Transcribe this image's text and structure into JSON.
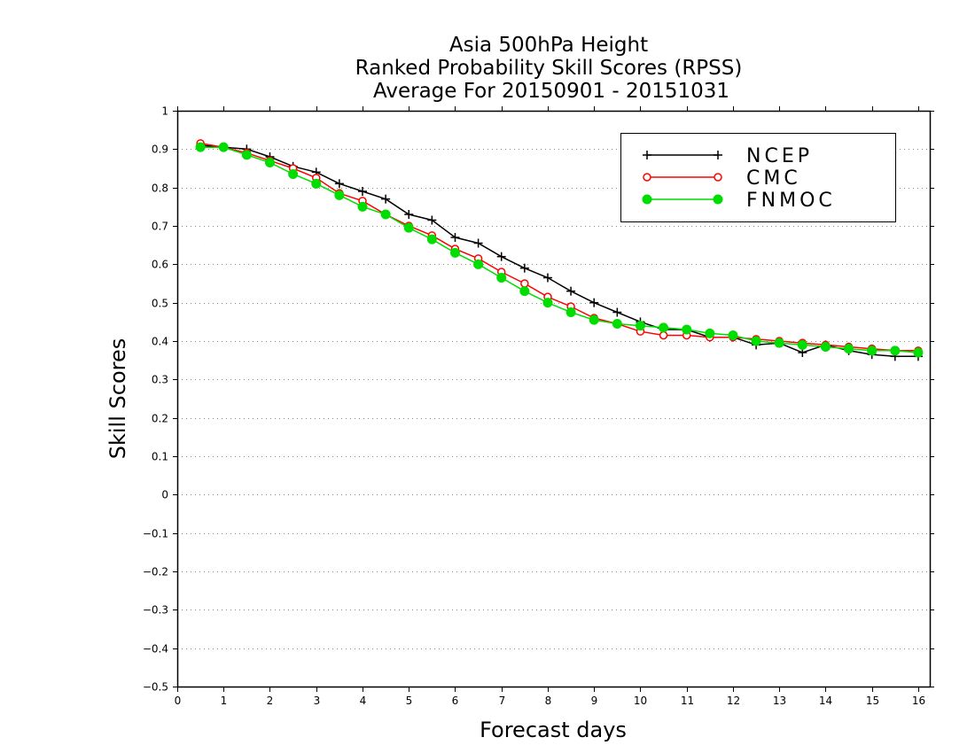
{
  "chart_data": {
    "type": "line",
    "title_lines": [
      "Asia 500hPa Height",
      "Ranked Probability Skill Scores (RPSS)",
      "Average For 20150901 - 20151031"
    ],
    "xlabel": "Forecast days",
    "ylabel": "Skill Scores",
    "xlim": [
      0,
      16.25
    ],
    "ylim": [
      -0.5,
      1
    ],
    "x_ticks": [
      0,
      1,
      2,
      3,
      4,
      5,
      6,
      7,
      8,
      9,
      10,
      11,
      12,
      13,
      14,
      15,
      16
    ],
    "x_tick_labels": [
      "0",
      "1",
      "2",
      "3",
      "4",
      "5",
      "6",
      "7",
      "8",
      "9",
      "10",
      "11",
      "12",
      "13",
      "14",
      "15",
      "16"
    ],
    "y_ticks": [
      -0.5,
      -0.4,
      -0.3,
      -0.2,
      -0.1,
      0,
      0.1,
      0.2,
      0.3,
      0.4,
      0.5,
      0.6,
      0.7,
      0.8,
      0.9,
      1
    ],
    "y_tick_labels": [
      "−0.5",
      "−0.4",
      "−0.3",
      "−0.2",
      "−0.1",
      "0",
      "0.1",
      "0.2",
      "0.3",
      "0.4",
      "0.5",
      "0.6",
      "0.7",
      "0.8",
      "0.9",
      "1"
    ],
    "grid": "horizontal dotted",
    "legend_position": "top-right",
    "x": [
      0.5,
      1,
      1.5,
      2,
      2.5,
      3,
      3.5,
      4,
      4.5,
      5,
      5.5,
      6,
      6.5,
      7,
      7.5,
      8,
      8.5,
      9,
      9.5,
      10,
      10.5,
      11,
      11.5,
      12,
      12.5,
      13,
      13.5,
      14,
      14.5,
      15,
      15.5,
      16
    ],
    "series": [
      {
        "name": "NCEP",
        "color": "#000000",
        "marker": "plus",
        "values": [
          0.91,
          0.905,
          0.9,
          0.88,
          0.855,
          0.84,
          0.81,
          0.79,
          0.77,
          0.73,
          0.715,
          0.67,
          0.655,
          0.62,
          0.59,
          0.565,
          0.53,
          0.5,
          0.475,
          0.45,
          0.43,
          0.43,
          0.41,
          0.41,
          0.39,
          0.395,
          0.37,
          0.39,
          0.375,
          0.365,
          0.36,
          0.36
        ]
      },
      {
        "name": "CMC",
        "color": "#ff0000",
        "marker": "open-circle",
        "values": [
          0.915,
          0.905,
          0.89,
          0.87,
          0.85,
          0.825,
          0.785,
          0.765,
          0.73,
          0.7,
          0.675,
          0.64,
          0.615,
          0.58,
          0.55,
          0.515,
          0.49,
          0.46,
          0.445,
          0.425,
          0.415,
          0.415,
          0.41,
          0.41,
          0.405,
          0.4,
          0.395,
          0.39,
          0.385,
          0.38,
          0.375,
          0.375
        ]
      },
      {
        "name": "FNMOC",
        "color": "#00dd00",
        "marker": "filled-circle",
        "values": [
          0.905,
          0.905,
          0.885,
          0.865,
          0.835,
          0.81,
          0.78,
          0.75,
          0.73,
          0.695,
          0.665,
          0.63,
          0.6,
          0.565,
          0.53,
          0.5,
          0.475,
          0.455,
          0.445,
          0.44,
          0.435,
          0.43,
          0.42,
          0.415,
          0.4,
          0.395,
          0.39,
          0.385,
          0.38,
          0.375,
          0.375,
          0.37
        ]
      }
    ]
  }
}
